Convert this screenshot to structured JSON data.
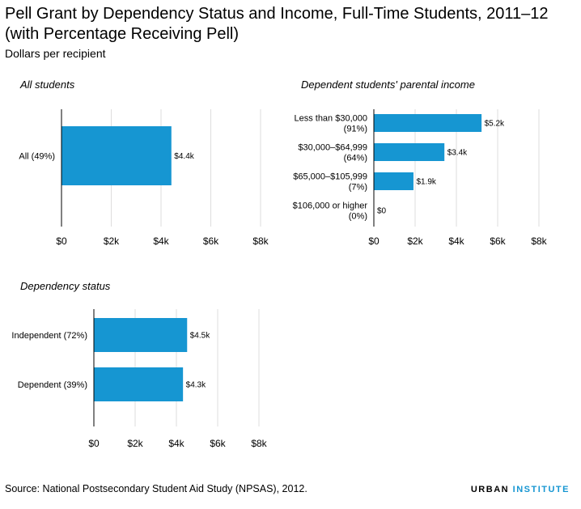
{
  "header": {
    "title": "Pell Grant by Dependency Status and Income, Full-Time Students, 2011–12 (with Percentage Receiving Pell)",
    "subtitle": "Dollars per recipient"
  },
  "footer": {
    "source": "Source: National Postsecondary Student Aid Study (NPSAS), 2012.",
    "logo_primary": "URBAN",
    "logo_secondary": "INSTITUTE"
  },
  "colors": {
    "bar": "#1696d2",
    "grid": "#dedddd",
    "axis": "#000000"
  },
  "chart_data": [
    {
      "id": "all",
      "type": "bar",
      "orientation": "horizontal",
      "title": "All students",
      "categories": [
        [
          "All (49%)"
        ]
      ],
      "values": [
        4400
      ],
      "value_labels": [
        "$4.4k"
      ],
      "xlim": [
        0,
        8000
      ],
      "ticks": [
        0,
        2000,
        4000,
        6000,
        8000
      ],
      "tick_labels": [
        "$0",
        "$2k",
        "$4k",
        "$6k",
        "$8k"
      ],
      "grid": true
    },
    {
      "id": "income",
      "type": "bar",
      "orientation": "horizontal",
      "title": "Dependent students' parental income",
      "categories": [
        [
          "Less than $30,000",
          "(91%)"
        ],
        [
          "$30,000–$64,999",
          "(64%)"
        ],
        [
          "$65,000–$105,999",
          "(7%)"
        ],
        [
          "$106,000 or higher",
          "(0%)"
        ]
      ],
      "values": [
        5200,
        3400,
        1900,
        0
      ],
      "value_labels": [
        "$5.2k",
        "$3.4k",
        "$1.9k",
        "$0"
      ],
      "xlim": [
        0,
        8000
      ],
      "ticks": [
        0,
        2000,
        4000,
        6000,
        8000
      ],
      "tick_labels": [
        "$0",
        "$2k",
        "$4k",
        "$6k",
        "$8k"
      ],
      "grid": true
    },
    {
      "id": "dependency",
      "type": "bar",
      "orientation": "horizontal",
      "title": "Dependency status",
      "categories": [
        [
          "Independent (72%)"
        ],
        [
          "Dependent (39%)"
        ]
      ],
      "values": [
        4500,
        4300
      ],
      "value_labels": [
        "$4.5k",
        "$4.3k"
      ],
      "xlim": [
        0,
        8000
      ],
      "ticks": [
        0,
        2000,
        4000,
        6000,
        8000
      ],
      "tick_labels": [
        "$0",
        "$2k",
        "$4k",
        "$6k",
        "$8k"
      ],
      "grid": true
    }
  ]
}
